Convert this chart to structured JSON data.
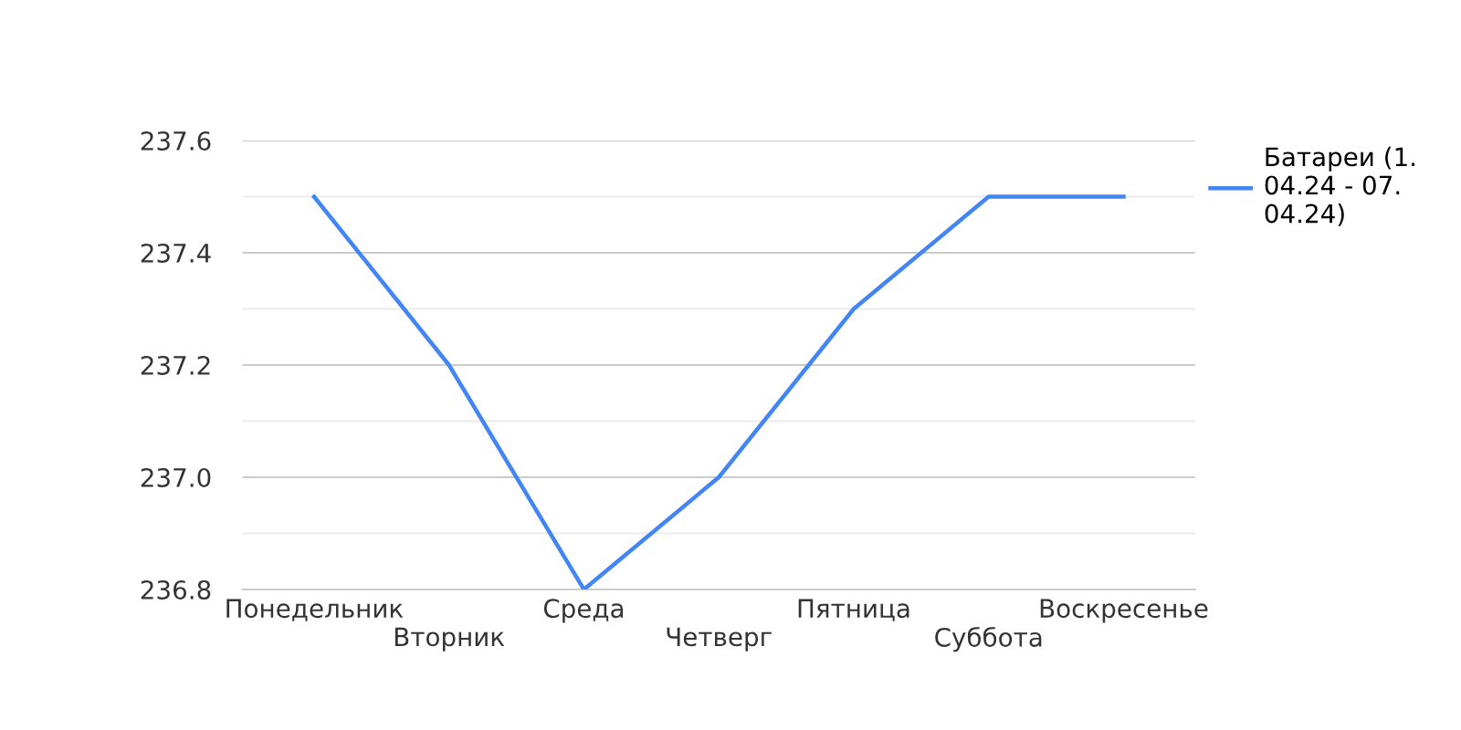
{
  "chart_data": {
    "type": "line",
    "categories": [
      "Понедельник",
      "Вторник",
      "Среда",
      "Четверг",
      "Пятница",
      "Суббота",
      "Воскресенье"
    ],
    "series": [
      {
        "name": "Батареи (1.\n04.24 - 07.\n04.24)",
        "color": "#4285f4",
        "values": [
          237.5,
          237.2,
          236.8,
          237.0,
          237.3,
          237.5,
          237.5
        ]
      }
    ],
    "ylim": [
      236.8,
      237.6
    ],
    "yticks": [
      236.8,
      {
        "value": 236.9,
        "label": null
      },
      {
        "value": 237,
        "label": "237.0"
      },
      {
        "value": 237.1,
        "label": null
      },
      237.2,
      {
        "value": 237.3,
        "label": null
      },
      237.4,
      {
        "value": 237.5,
        "label": null
      },
      237.6
    ],
    "grid": "y",
    "legend": "right",
    "marker": "none",
    "line_style": "solid"
  }
}
